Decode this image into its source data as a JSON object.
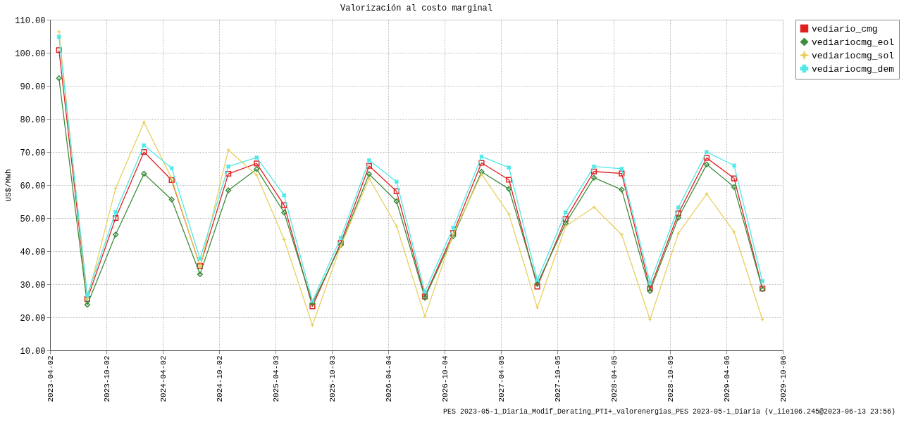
{
  "chart_data": {
    "type": "line",
    "title": "Valorización al costo marginal",
    "ylabel": "US$/MWh",
    "x": [
      "2023-05-01",
      "2023-08-01",
      "2023-11-01",
      "2024-02-01",
      "2024-05-01",
      "2024-08-01",
      "2024-11-01",
      "2025-02-01",
      "2025-05-01",
      "2025-08-01",
      "2025-11-01",
      "2026-02-01",
      "2026-05-01",
      "2026-08-01",
      "2026-11-01",
      "2027-02-01",
      "2027-05-01",
      "2027-08-01",
      "2027-11-01",
      "2028-02-01",
      "2028-05-01",
      "2028-08-01",
      "2028-11-01",
      "2029-02-01",
      "2029-05-01",
      "2029-08-01"
    ],
    "series": [
      {
        "name": "vediario_cmg",
        "color": "#e02020",
        "marker": "square",
        "values": [
          100.8,
          25.5,
          50,
          70,
          61.5,
          35.5,
          63.4,
          66.5,
          53.9,
          23.3,
          42.5,
          65.8,
          58.1,
          26.3,
          45.5,
          66.7,
          61.6,
          29.3,
          49.7,
          64.1,
          63.5,
          28.7,
          51.4,
          68.2,
          62,
          28.7
        ]
      },
      {
        "name": "vediariocmg_eol",
        "color": "#3c8c3c",
        "marker": "diamond",
        "values": [
          92.3,
          23.8,
          45,
          63.4,
          55.6,
          33,
          58.4,
          64.8,
          51.7,
          24.2,
          41.9,
          63.3,
          55.1,
          25.9,
          44.5,
          64,
          58.8,
          30.1,
          48.4,
          62.2,
          58.6,
          27.9,
          50.1,
          66.2,
          59.4,
          28.5
        ]
      },
      {
        "name": "vediariocmg_sol",
        "color": "#e8d060",
        "marker": "star",
        "values": [
          106.4,
          25.6,
          59,
          79,
          62,
          35.2,
          70.6,
          63,
          43.5,
          17.6,
          41.6,
          62,
          47.6,
          20.3,
          45.2,
          63.3,
          51.2,
          22.9,
          47.5,
          53.3,
          45,
          19.3,
          45.4,
          57.3,
          45.8,
          19.3
        ]
      },
      {
        "name": "vediariocmg_dem",
        "color": "#50e8e8",
        "marker": "cross",
        "values": [
          104.8,
          26.7,
          51.8,
          72,
          65.1,
          37.7,
          65.6,
          68.3,
          56.9,
          24.9,
          44,
          67.5,
          61,
          27.7,
          47.1,
          68.6,
          65.3,
          31.3,
          51.7,
          65.6,
          64.9,
          30.5,
          53.2,
          70,
          65.9,
          30.9
        ]
      }
    ],
    "xlim": [
      "2023-04-02",
      "2029-10-06"
    ],
    "xticks": [
      "2023-04-02",
      "2023-10-02",
      "2024-04-02",
      "2024-10-02",
      "2025-04-03",
      "2025-10-03",
      "2026-04-04",
      "2026-10-04",
      "2027-04-05",
      "2027-10-05",
      "2028-04-05",
      "2028-10-05",
      "2029-04-06",
      "2029-10-06"
    ],
    "ylim": [
      10,
      110
    ],
    "yticks": [
      {
        "value": 10,
        "label": "10.00"
      },
      {
        "value": 20,
        "label": "20.00"
      },
      {
        "value": 30,
        "label": "30.00"
      },
      {
        "value": 40,
        "label": "40.00"
      },
      {
        "value": 50,
        "label": "50.00"
      },
      {
        "value": 60,
        "label": "60.00"
      },
      {
        "value": 70,
        "label": "70.00"
      },
      {
        "value": 80,
        "label": "80.00"
      },
      {
        "value": 90,
        "label": "90.00"
      },
      {
        "value": 100,
        "label": "100.00"
      },
      {
        "value": 110,
        "label": "110.00"
      }
    ],
    "grid": true,
    "legend": "top right",
    "line_style": "solid",
    "annotations": [
      "PES 2023-05-1_Diaria_Modif_Derating_PTI+_valorenergias_PES 2023-05-1_Diaria (v_iie106.245@2023-06-13 23:56)"
    ]
  }
}
